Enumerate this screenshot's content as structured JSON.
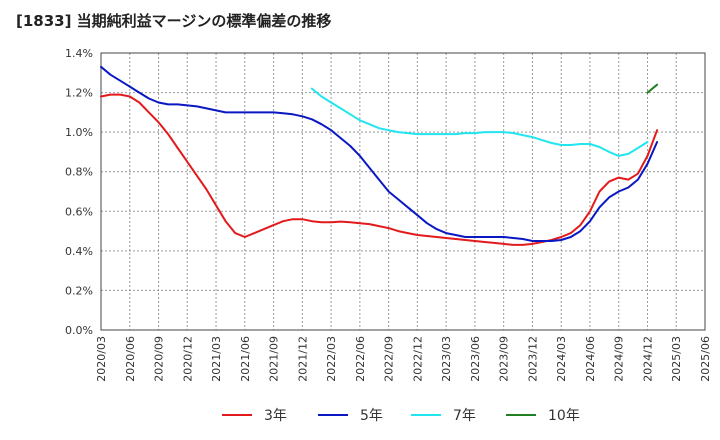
{
  "chart_data": {
    "type": "line",
    "title": "[1833]  当期純利益マージンの標準偏差の推移",
    "ylim": [
      0,
      1.4
    ],
    "y_ticks": [
      "0.0%",
      "0.2%",
      "0.4%",
      "0.6%",
      "0.8%",
      "1.0%",
      "1.2%",
      "1.4%"
    ],
    "x_ticks": [
      "2020/03",
      "2020/06",
      "2020/09",
      "2020/12",
      "2021/03",
      "2021/06",
      "2021/09",
      "2021/12",
      "2022/03",
      "2022/06",
      "2022/09",
      "2022/12",
      "2023/03",
      "2023/06",
      "2023/09",
      "2023/12",
      "2024/03",
      "2024/06",
      "2024/09",
      "2024/12",
      "2025/03",
      "2025/06"
    ],
    "grid": true,
    "legend": "bottom",
    "series": [
      {
        "name": "3年",
        "color": "#e31a1c",
        "points": [
          [
            0,
            1.18
          ],
          [
            1,
            1.19
          ],
          [
            2,
            1.19
          ],
          [
            3,
            1.18
          ],
          [
            4,
            1.15
          ],
          [
            5,
            1.1
          ],
          [
            6,
            1.05
          ],
          [
            7,
            0.99
          ],
          [
            8,
            0.92
          ],
          [
            9,
            0.85
          ],
          [
            10,
            0.78
          ],
          [
            11,
            0.71
          ],
          [
            12,
            0.63
          ],
          [
            13,
            0.55
          ],
          [
            14,
            0.49
          ],
          [
            15,
            0.47
          ],
          [
            16,
            0.49
          ],
          [
            17,
            0.51
          ],
          [
            18,
            0.53
          ],
          [
            19,
            0.55
          ],
          [
            20,
            0.56
          ],
          [
            21,
            0.56
          ],
          [
            22,
            0.55
          ],
          [
            23,
            0.545
          ],
          [
            24,
            0.545
          ],
          [
            25,
            0.548
          ],
          [
            26,
            0.545
          ],
          [
            27,
            0.54
          ],
          [
            28,
            0.535
          ],
          [
            29,
            0.525
          ],
          [
            30,
            0.515
          ],
          [
            31,
            0.5
          ],
          [
            32,
            0.49
          ],
          [
            33,
            0.48
          ],
          [
            34,
            0.475
          ],
          [
            35,
            0.47
          ],
          [
            36,
            0.465
          ],
          [
            37,
            0.46
          ],
          [
            38,
            0.455
          ],
          [
            39,
            0.45
          ],
          [
            40,
            0.445
          ],
          [
            41,
            0.44
          ],
          [
            42,
            0.435
          ],
          [
            43,
            0.43
          ],
          [
            44,
            0.43
          ],
          [
            45,
            0.435
          ],
          [
            46,
            0.445
          ],
          [
            47,
            0.455
          ],
          [
            48,
            0.47
          ],
          [
            49,
            0.49
          ],
          [
            50,
            0.53
          ],
          [
            51,
            0.6
          ],
          [
            52,
            0.7
          ],
          [
            53,
            0.75
          ],
          [
            54,
            0.77
          ],
          [
            55,
            0.76
          ],
          [
            56,
            0.79
          ],
          [
            57,
            0.88
          ],
          [
            58,
            1.01
          ]
        ]
      },
      {
        "name": "5年",
        "color": "#0a18c4",
        "points": [
          [
            0,
            1.33
          ],
          [
            1,
            1.29
          ],
          [
            2,
            1.26
          ],
          [
            3,
            1.23
          ],
          [
            4,
            1.2
          ],
          [
            5,
            1.17
          ],
          [
            6,
            1.15
          ],
          [
            7,
            1.14
          ],
          [
            8,
            1.14
          ],
          [
            9,
            1.135
          ],
          [
            10,
            1.13
          ],
          [
            11,
            1.12
          ],
          [
            12,
            1.11
          ],
          [
            13,
            1.1
          ],
          [
            14,
            1.1
          ],
          [
            15,
            1.1
          ],
          [
            16,
            1.1
          ],
          [
            17,
            1.1
          ],
          [
            18,
            1.1
          ],
          [
            19,
            1.095
          ],
          [
            20,
            1.09
          ],
          [
            21,
            1.08
          ],
          [
            22,
            1.065
          ],
          [
            23,
            1.04
          ],
          [
            24,
            1.01
          ],
          [
            25,
            0.97
          ],
          [
            26,
            0.93
          ],
          [
            27,
            0.88
          ],
          [
            28,
            0.82
          ],
          [
            29,
            0.76
          ],
          [
            30,
            0.7
          ],
          [
            31,
            0.66
          ],
          [
            32,
            0.62
          ],
          [
            33,
            0.58
          ],
          [
            34,
            0.54
          ],
          [
            35,
            0.51
          ],
          [
            36,
            0.49
          ],
          [
            37,
            0.48
          ],
          [
            38,
            0.47
          ],
          [
            39,
            0.47
          ],
          [
            40,
            0.47
          ],
          [
            41,
            0.47
          ],
          [
            42,
            0.47
          ],
          [
            43,
            0.465
          ],
          [
            44,
            0.46
          ],
          [
            45,
            0.45
          ],
          [
            46,
            0.45
          ],
          [
            47,
            0.45
          ],
          [
            48,
            0.455
          ],
          [
            49,
            0.47
          ],
          [
            50,
            0.5
          ],
          [
            51,
            0.55
          ],
          [
            52,
            0.62
          ],
          [
            53,
            0.67
          ],
          [
            54,
            0.7
          ],
          [
            55,
            0.72
          ],
          [
            56,
            0.76
          ],
          [
            57,
            0.84
          ],
          [
            58,
            0.95
          ]
        ]
      },
      {
        "name": "7年",
        "color": "#22e5f0",
        "points": [
          [
            22,
            1.22
          ],
          [
            23,
            1.18
          ],
          [
            24,
            1.15
          ],
          [
            25,
            1.12
          ],
          [
            26,
            1.09
          ],
          [
            27,
            1.06
          ],
          [
            28,
            1.04
          ],
          [
            29,
            1.02
          ],
          [
            30,
            1.01
          ],
          [
            31,
            1.0
          ],
          [
            32,
            0.995
          ],
          [
            33,
            0.99
          ],
          [
            34,
            0.99
          ],
          [
            35,
            0.99
          ],
          [
            36,
            0.99
          ],
          [
            37,
            0.99
          ],
          [
            38,
            0.995
          ],
          [
            39,
            0.995
          ],
          [
            40,
            1.0
          ],
          [
            41,
            1.0
          ],
          [
            42,
            1.0
          ],
          [
            43,
            0.995
          ],
          [
            44,
            0.985
          ],
          [
            45,
            0.975
          ],
          [
            46,
            0.96
          ],
          [
            47,
            0.945
          ],
          [
            48,
            0.935
          ],
          [
            49,
            0.935
          ],
          [
            50,
            0.94
          ],
          [
            51,
            0.94
          ],
          [
            52,
            0.925
          ],
          [
            53,
            0.9
          ],
          [
            54,
            0.88
          ],
          [
            55,
            0.89
          ],
          [
            56,
            0.92
          ],
          [
            57,
            0.95
          ]
        ]
      },
      {
        "name": "10年",
        "color": "#1f7f22",
        "points": [
          [
            57,
            1.2
          ],
          [
            58,
            1.24
          ]
        ]
      }
    ]
  }
}
